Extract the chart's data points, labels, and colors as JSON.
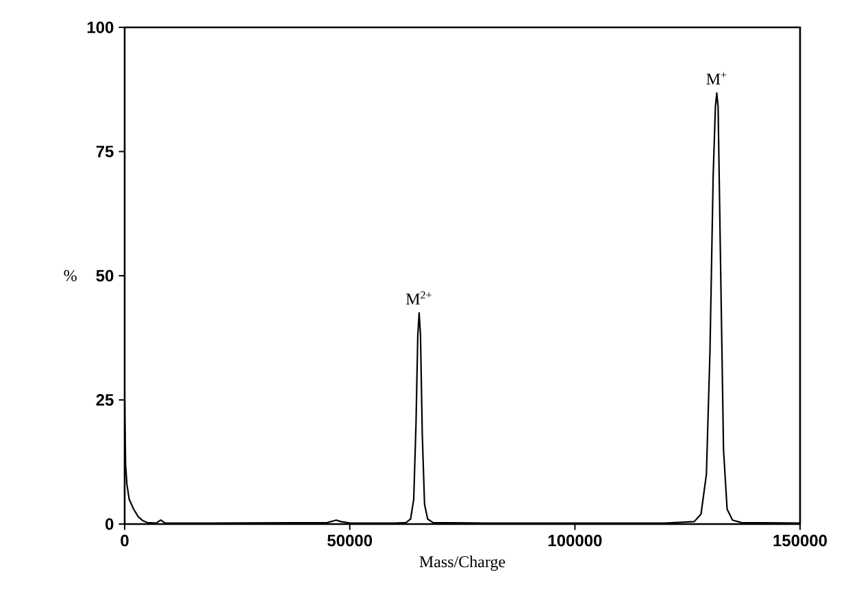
{
  "chart_data": {
    "type": "line",
    "xlabel": "Mass/Charge",
    "ylabel": "%",
    "x": [
      0,
      200,
      500,
      1000,
      2000,
      3000,
      4000,
      5000,
      7000,
      8000,
      9000,
      20000,
      45000,
      47000,
      48000,
      50000,
      60000,
      62500,
      63500,
      64200,
      64700,
      65100,
      65400,
      65700,
      66100,
      66600,
      67300,
      68500,
      80000,
      100000,
      120000,
      126500,
      128000,
      129200,
      130000,
      130700,
      131200,
      131500,
      131800,
      132300,
      133000,
      133800,
      135000,
      137000,
      150000
    ],
    "series": [
      {
        "color": "#000000",
        "values": [
          25,
          12,
          8,
          5,
          3,
          1.5,
          0.7,
          0.3,
          0.2,
          0.8,
          0.2,
          0.2,
          0.3,
          0.8,
          0.5,
          0.2,
          0.2,
          0.3,
          1,
          5,
          20,
          38,
          42.5,
          38,
          18,
          4,
          1,
          0.3,
          0.2,
          0.2,
          0.2,
          0.5,
          2,
          10,
          35,
          70,
          84,
          86.8,
          84,
          55,
          15,
          3,
          0.8,
          0.3,
          0.2
        ]
      }
    ],
    "xlim": [
      0,
      150000
    ],
    "ylim": [
      0,
      100
    ],
    "xticks": [
      0,
      50000,
      100000,
      150000
    ],
    "yticks": [
      0,
      25,
      50,
      75,
      100
    ],
    "annotations": [
      {
        "text": "M$^{2+}$",
        "x": 65400,
        "y": 42.5
      },
      {
        "text": "M$^{+}$",
        "x": 131500,
        "y": 86.8
      }
    ]
  }
}
